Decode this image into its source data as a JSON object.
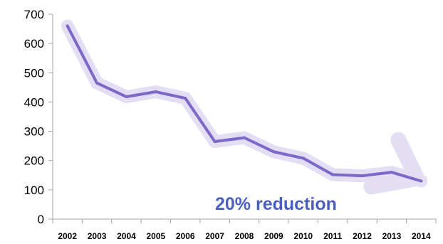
{
  "chart_data": {
    "type": "line",
    "title": "",
    "xlabel": "",
    "ylabel": "",
    "categories": [
      "2002",
      "2003",
      "2004",
      "2005",
      "2006",
      "2007",
      "2008",
      "2009",
      "2010",
      "2011",
      "2012",
      "2013",
      "2014"
    ],
    "series": [
      {
        "values": [
          660,
          465,
          418,
          435,
          413,
          265,
          278,
          230,
          208,
          152,
          148,
          160,
          130
        ],
        "color": "#7b68c7"
      }
    ],
    "ylim": [
      0,
      700
    ],
    "yticks": [
      0,
      100,
      200,
      300,
      400,
      500,
      600,
      700
    ],
    "grid": false,
    "legend": "none",
    "annotation": {
      "text": "20% reduction",
      "color": "#4a5fbf"
    },
    "trend_arrow_color": "#e4def4"
  }
}
